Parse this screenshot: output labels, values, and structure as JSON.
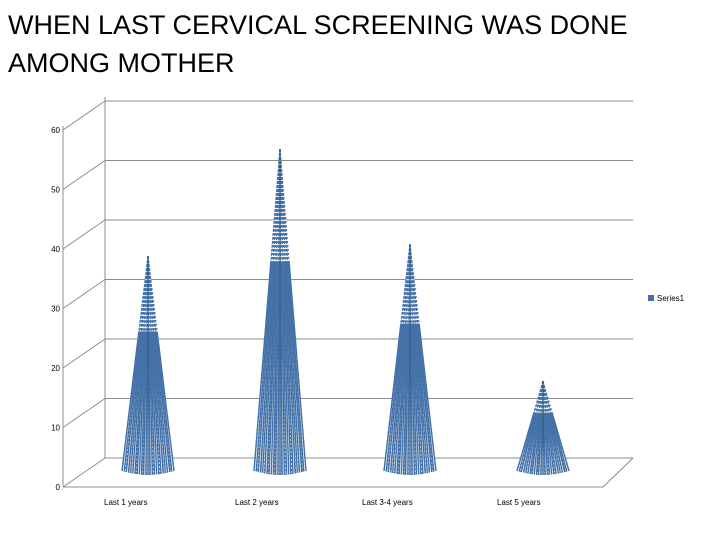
{
  "title": "WHEN LAST CERVICAL SCREENING WAS DONE AMONG MOTHER",
  "chart_data": {
    "type": "bar",
    "style": "3d-cone",
    "categories": [
      "Last 1 years",
      "Last 2 years",
      "Last 3-4 years",
      "Last 5 years"
    ],
    "series": [
      {
        "name": "Series1",
        "values": [
          36,
          54,
          38,
          15
        ]
      }
    ],
    "yticks": [
      0,
      10,
      20,
      30,
      40,
      50,
      60
    ],
    "ylim": [
      0,
      60
    ],
    "grid": true,
    "legend": "right",
    "colors": {
      "series": "#4472a8",
      "grid": "#8c8c8c",
      "axis": "#8c8c8c"
    }
  }
}
